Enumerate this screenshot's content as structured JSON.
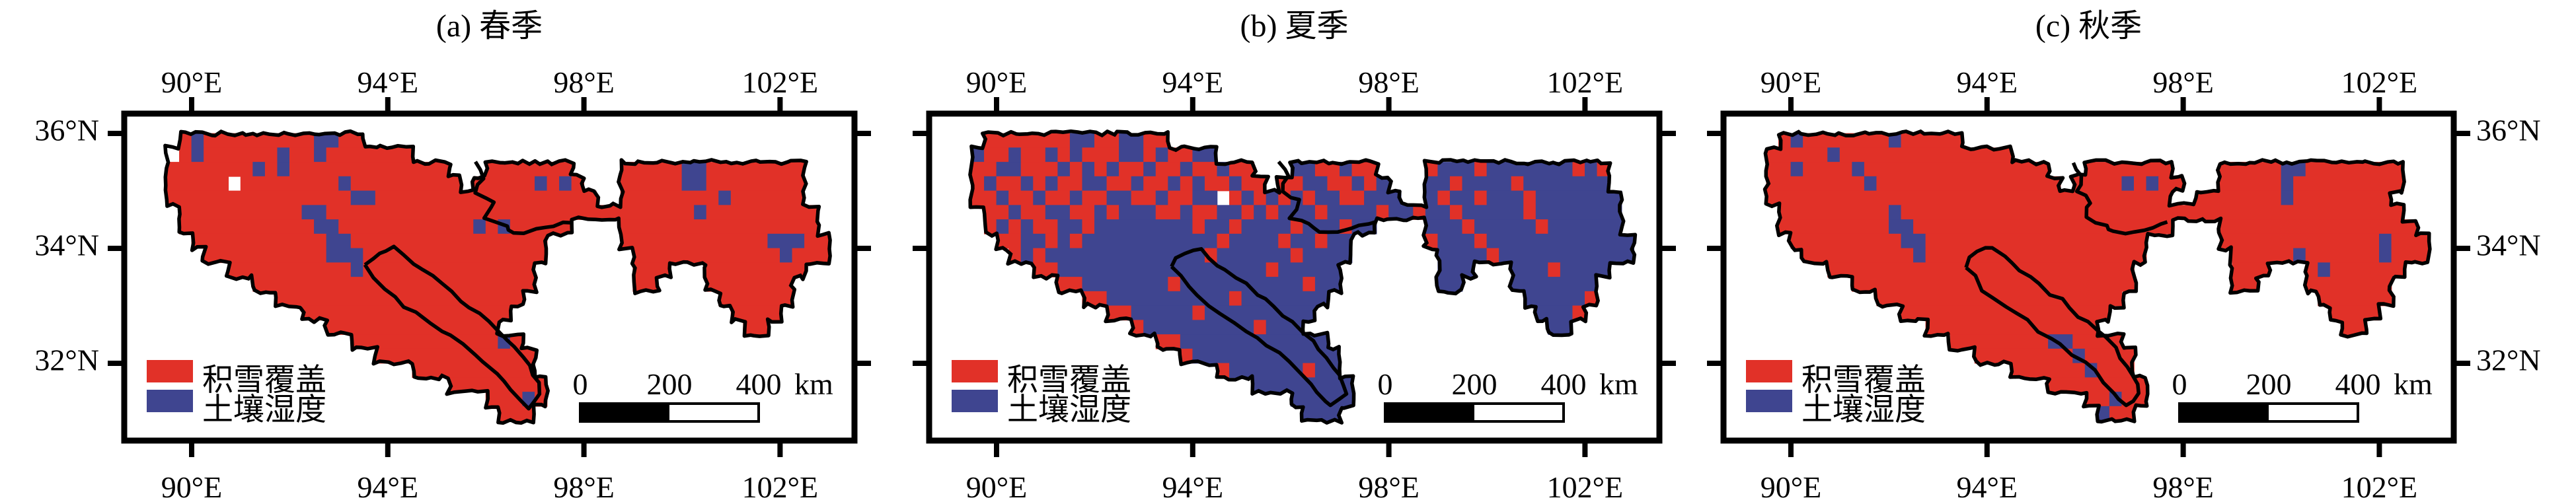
{
  "figure": {
    "colors": {
      "snow": "#e13128",
      "soil": "#3f4590",
      "outline": "#000000",
      "frame": "#000000",
      "text": "#000000",
      "background": "#ffffff"
    },
    "axes": {
      "lon_ticks": [
        {
          "deg": 90,
          "label": "90°E"
        },
        {
          "deg": 94,
          "label": "94°E"
        },
        {
          "deg": 98,
          "label": "98°E"
        },
        {
          "deg": 102,
          "label": "102°E"
        }
      ],
      "lat_ticks": [
        {
          "deg": 36,
          "label": "36°N"
        },
        {
          "deg": 34,
          "label": "34°N"
        },
        {
          "deg": 32,
          "label": "32°N"
        }
      ]
    },
    "legend": {
      "items": [
        {
          "key": "snow",
          "label": "积雪覆盖"
        },
        {
          "key": "soil",
          "label": "土壤湿度"
        }
      ]
    },
    "scalebar": {
      "labels": [
        "0",
        "200",
        "400"
      ],
      "unit": "km",
      "length_km": 400
    },
    "grid": {
      "lon_min": 89.0,
      "lat_max": 36.25,
      "cell_deg": 0.25,
      "cols": 56,
      "rows": 21
    },
    "internal_boundaries": [
      {
        "name": "yellow-river-source-divide",
        "points": [
          [
            95.75,
            35.52
          ],
          [
            95.95,
            35.25
          ],
          [
            95.8,
            35.0
          ],
          [
            96.15,
            34.82
          ],
          [
            96.0,
            34.55
          ],
          [
            96.4,
            34.42
          ],
          [
            96.6,
            34.28
          ],
          [
            97.0,
            34.3
          ],
          [
            97.4,
            34.38
          ],
          [
            97.7,
            34.45
          ]
        ]
      },
      {
        "name": "lancang-river-source-divide",
        "points": [
          [
            93.55,
            33.7
          ],
          [
            93.8,
            33.95
          ],
          [
            94.15,
            34.0
          ],
          [
            94.5,
            33.72
          ],
          [
            94.9,
            33.5
          ],
          [
            95.3,
            33.22
          ],
          [
            95.7,
            32.98
          ],
          [
            96.05,
            32.7
          ],
          [
            96.45,
            32.42
          ],
          [
            96.75,
            32.1
          ],
          [
            97.0,
            31.8
          ],
          [
            97.1,
            31.5
          ],
          [
            96.85,
            31.25
          ],
          [
            96.55,
            31.5
          ],
          [
            96.2,
            31.85
          ],
          [
            95.75,
            32.15
          ],
          [
            95.3,
            32.45
          ],
          [
            94.85,
            32.72
          ],
          [
            94.35,
            33.0
          ],
          [
            93.9,
            33.3
          ],
          [
            93.55,
            33.7
          ]
        ]
      }
    ],
    "panels": [
      {
        "id": "a",
        "title": "(a) 春季",
        "lat_labels": "left",
        "rows": [
          "",
          "...RBRRRRRRRRRBBRR",
          "..WRBRRRRRRBRRBRRRRRRR",
          "..RRRRRRRBRBRRRRRRRRRRRRR...RRRRRRR....RRRRRBBRRRRRRRR",
          "..RRRRRWRRRRRRRRBRRRRRRRRR.RRRRRBRBR...RRRRRBBRRRRRRRR",
          "..RRRRRRRRRRRRRRRBBRRRRRRRRRRRRRRRRRR..RRRRRRRRBRRRRRR",
          "...RRRRRRRRRRBBRRRRRRRRRRRRRRRRRRRRRRRRRRRRRRBRRRRRRRRR",
          "...RRRRRRRRRRRBBRRRRRRRRRRRBRBRRRRR....RRRRRRRRRRRRRRRR",
          "....RRRRRRRRRRRBBRRRRRRRRRRRRRRRR......RRRRRRRRRRRRBBBRR",
          ".....RRRRRRRRRRBBBRRRRRRRRRRRRRRR.......RRRRRRRRRRRRBRRR",
          ".......RRRRRRRRRRBRRRRRRRRRRRRRR........RRR...RRRRRRRR",
          ".........RRRRRRRRRRRRRRRRRRRRRRR........RR....RRRRRRR",
          "...........RRRRRRRRRRRRRRRRRRRR................RRRRRR",
          ".............RRRRRRRRRRRRRRRRR..................RRRR",
          "...............RRRRRRRRRRRRRR....................RR",
          ".................RRRRRRRRRRRRBR",
          "...................RRRRRRRRRRRRR",
          "......................RRRRRRRRRR",
          ".........................RRRRRRRR",
          "............................RRRBR",
          ".............................RRR"
        ]
      },
      {
        "id": "b",
        "title": "(b) 夏季",
        "lat_labels": "none",
        "rows": [
          "",
          "...RRRRRRRBBRRBBRR",
          "..BRRBRRBRBRRRBBRBRRBB",
          "..RRBBRRRBRBRBRRBRRBRRBRR...BBRRBRR....RBBBRBBBBBBBRBR",
          "..RBRRBRBRRBBRRBRRBRBRRBRR.RRBBRRBRB...BBRBBBBRBBBBBBB",
          "..RRBRRBRRBRRBBRRBRRBBWRBRBRBRBBRRBBB..BRBBRBBBRBBBBBBB",
          "...RRBRRBBRRBRBBBRRBRRBBRBRBBBRBBBBRBBRBBRBBBBBRBBBBBBB",
          "...RBRBRRBBRBBBBBBBBRBBRBBBBRBBBRBB....BBBRBBBBBRBBBBBB",
          "....RRBBRBRBBBBBBBBBBBRBBBBRBBRBB......RBBBRBBBBBBBBBBBB",
          ".....RBRBBBBBBBBBBBBBRBBBBBBRBBBB.......BBBBRBBBBBBBBBBB",
          ".......RRBBBBBBBBBBBBBBBBBRBBBBB........BBB...BBBRBBBB",
          ".........RRBBBBBBBRBBBBBBBBBBRBB........BB....BBBBBBB",
          "...........RRBBBBBBBBBBRBBBBBBB................BBBBBR",
          ".............RRBBBBBRBBBBBBBBB..................BBBR",
          "...............RBBBBBBBBBRBBB....................BB",
          ".................RRBBBBBBBBBBBB",
          "...................RBBBBBBBBBBBB",
          "......................RBBBBBBRBB",
          ".........................BBBBBBBB",
          "............................BBBBB",
          ".............................BBB"
        ]
      },
      {
        "id": "c",
        "title": "(c) 秋季",
        "lat_labels": "right",
        "rows": [
          "",
          "...RBRRRRRRRBRRRRR",
          "..RRRRRBRRRRRRRRRRRRRR",
          "..RRBRRRRBRRRRRRRRRRRRRRR...RRRRRRR....RRRRRBBRRRRRRRR",
          "..RRRRRRRRBRRRRRRRRRRRRRRR.RRRRBRBRR...RRRRRBRRRRRRRRR",
          "..RRRRRRRRRRRRRRRRRRRRRRRRRRRRRRRRR..RRRRRRRBRRRRRRRR",
          "...RRRRRRRRRBRRRRRRRRRRRRRRRRRRRRRRRRRRRRRRRRRRRRRRRRR",
          "...RRRRRRRRRBBRRRRRRRRRRRRRRRRRRRRR....RRRRRRRRRRRRRRRR",
          "....RRRRRRRRRBBRRRRRRRRRRRRRRRRRR......RRRRRRRRRRRRRBRRR",
          ".....RRRRRRRRRBRRRRRRRRRRRRRRRRRR.......RRRRRBRRRRRRBRRR",
          ".......RRRRRRRRRRRRRRRRRRRRRRRRR........RRR...RBRRRRRR",
          ".........RRRRRRRRRRRRRRRRRRRRRRR........RR....RRRRRRR",
          "...........RRRRRRRRRRRRRRRRRRRR................RRRRRR",
          ".............RRRRRRRRRRRRRRRRR..................RRRR",
          "...............RRRRRRRRRRRRRR....................RR",
          ".................RRRRRRRRBBRRRR",
          "...................RRRRRRRRBRRRR",
          "......................RRRRRRBRRR",
          ".........................RRRRRRRR",
          "............................RRBRR",
          ".............................BRR"
        ]
      }
    ]
  }
}
